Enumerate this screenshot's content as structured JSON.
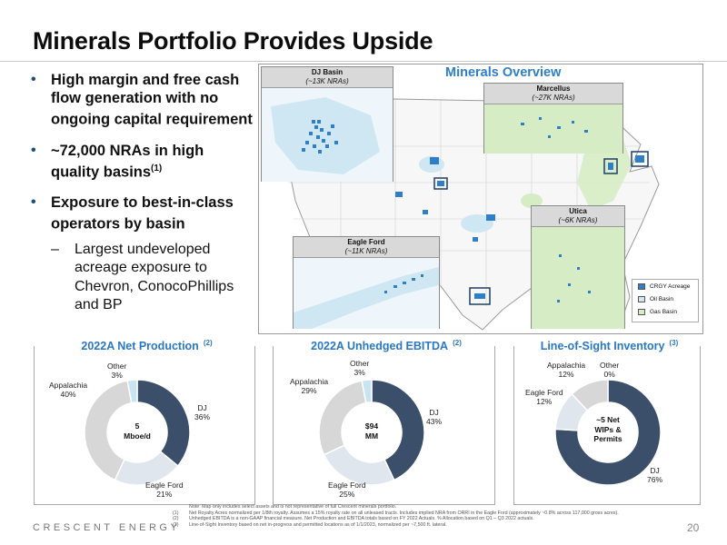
{
  "title": "Minerals Portfolio Provides Upside",
  "bullets": [
    {
      "text": "High margin and free cash flow generation with no ongoing capital requirement",
      "sup": ""
    },
    {
      "text": "~72,000 NRAs in high quality basins",
      "sup": "(1)"
    },
    {
      "text": "Exposure to best-in-class operators by basin",
      "sup": ""
    }
  ],
  "sub_bullet": "Largest undeveloped acreage exposure to Chevron, ConocoPhillips and BP",
  "map": {
    "heading": "Minerals Overview",
    "insets": [
      {
        "name": "DJ Basin",
        "nra": "(~13K NRAs)"
      },
      {
        "name": "Marcellus",
        "nra": "(~27K NRAs)"
      },
      {
        "name": "Utica",
        "nra": "(~6K NRAs)"
      },
      {
        "name": "Eagle Ford",
        "nra": "(~11K NRAs)"
      }
    ],
    "legend": [
      "CRGY Acreage",
      "Oil Basin",
      "Gas Basin"
    ],
    "colors": {
      "acreage": "#2f7fc8",
      "oil_basin": "#cfe6f3",
      "gas_basin": "#d6ecc4"
    }
  },
  "panels": {
    "production": {
      "title": "2022A Net Production",
      "sup": "(2)",
      "center": [
        "5",
        "Mboe/d"
      ],
      "slices": [
        {
          "name": "DJ",
          "value": "36%",
          "pct": 36,
          "color": "#3b4f6b"
        },
        {
          "name": "Eagle Ford",
          "value": "21%",
          "pct": 21,
          "color": "#dfe6ee"
        },
        {
          "name": "Appalachia",
          "value": "40%",
          "pct": 40,
          "color": "#d7d7d7"
        },
        {
          "name": "Other",
          "value": "3%",
          "pct": 3,
          "color": "#c8e4f3"
        }
      ]
    },
    "ebitda": {
      "title": "2022A Unhedged EBITDA",
      "sup": "(2)",
      "center": [
        "$94",
        "MM"
      ],
      "slices": [
        {
          "name": "DJ",
          "value": "43%",
          "pct": 43,
          "color": "#3b4f6b"
        },
        {
          "name": "Eagle Ford",
          "value": "25%",
          "pct": 25,
          "color": "#dfe6ee"
        },
        {
          "name": "Appalachia",
          "value": "29%",
          "pct": 29,
          "color": "#d7d7d7"
        },
        {
          "name": "Other",
          "value": "3%",
          "pct": 3,
          "color": "#c8e4f3"
        }
      ]
    },
    "inventory": {
      "title": "Line-of-Sight Inventory",
      "sup": "(3)",
      "center": [
        "~5 Net",
        "WIPs &",
        "Permits"
      ],
      "slices": [
        {
          "name": "DJ",
          "value": "76%",
          "pct": 76,
          "color": "#3b4f6b"
        },
        {
          "name": "Eagle Ford",
          "value": "12%",
          "pct": 12,
          "color": "#dfe6ee"
        },
        {
          "name": "Appalachia",
          "value": "12%",
          "pct": 12,
          "color": "#d7d7d7"
        },
        {
          "name": "Other",
          "value": "0%",
          "pct": 0,
          "color": "#c8e4f3"
        }
      ]
    }
  },
  "notes": [
    {
      "n": "",
      "text": "Note: Map only includes select assets and is not representative of full Crescent minerals portfolio."
    },
    {
      "n": "(1)",
      "text": "Net Royalty Acres normalized per 1/8th royalty. Assumes a 15% royalty rate on all unleased tracts. Includes implied NRA from ORRI in the Eagle Ford (approximately ~0.8% across 117,000 gross acres)."
    },
    {
      "n": "(2)",
      "text": "Unhedged EBITDA is a non-GAAP financial measure. Net Production and EBITDA totals based on FY 2022 Actuals. % Allocation based on Q1 – Q3 2022 actuals."
    },
    {
      "n": "(3)",
      "text": "Line-of-Sight Inventory based on net in-progress and permitted locations as of 1/1/2023, normalized per ~7,500 ft. lateral."
    }
  ],
  "footer": {
    "brand": "CRESCENT ENERGY",
    "page": "20"
  }
}
